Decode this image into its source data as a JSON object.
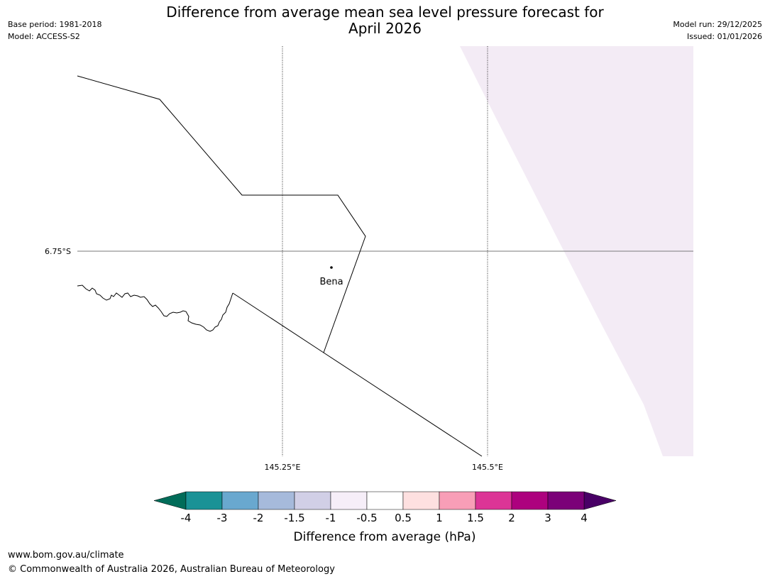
{
  "header": {
    "title_line1": "Difference from average mean sea level pressure forecast for",
    "title_line2": "April 2026",
    "base_period": "Base period: 1981-2018",
    "model": "Model: ACCESS-S2",
    "model_run": "Model run: 29/12/2025",
    "issued": "Issued: 01/01/2026"
  },
  "map": {
    "lat_label": "6.75°S",
    "lon_labels": [
      "145.25°E",
      "145.5°E"
    ],
    "place_label": "Bena",
    "shading_color": "#f3ebf5"
  },
  "colorbar": {
    "label": "Difference from average (hPa)",
    "ticks": [
      "-4",
      "-3",
      "-2",
      "-1.5",
      "-1",
      "-0.5",
      "0.5",
      "1",
      "1.5",
      "2",
      "3",
      "4"
    ],
    "colors": [
      "#1a9296",
      "#69a8cf",
      "#a6badb",
      "#d1cfe6",
      "#f6eef8",
      "#ffffff",
      "#fee0e0",
      "#f89eb7",
      "#dc3596",
      "#ad017e",
      "#7b0078"
    ],
    "under_color": "#016c59",
    "over_color": "#490066"
  },
  "footer": {
    "url": "www.bom.gov.au/climate",
    "copyright": "© Commonwealth of Australia 2026, Australian Bureau of Meteorology"
  }
}
